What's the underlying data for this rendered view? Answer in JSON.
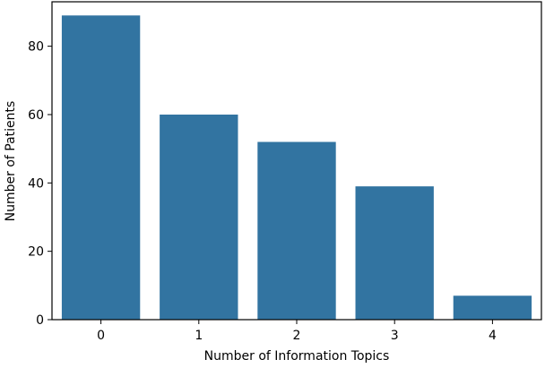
{
  "chart_data": {
    "type": "bar",
    "title": "",
    "xlabel": "Number of Information Topics",
    "ylabel": "Number of Patients",
    "categories": [
      "0",
      "1",
      "2",
      "3",
      "4"
    ],
    "values": [
      89,
      60,
      52,
      39,
      7
    ],
    "ylim": [
      0,
      93
    ],
    "yticks": [
      0,
      20,
      40,
      60,
      80
    ],
    "grid": false,
    "legend": "none",
    "bar_color": "#3274a1"
  }
}
